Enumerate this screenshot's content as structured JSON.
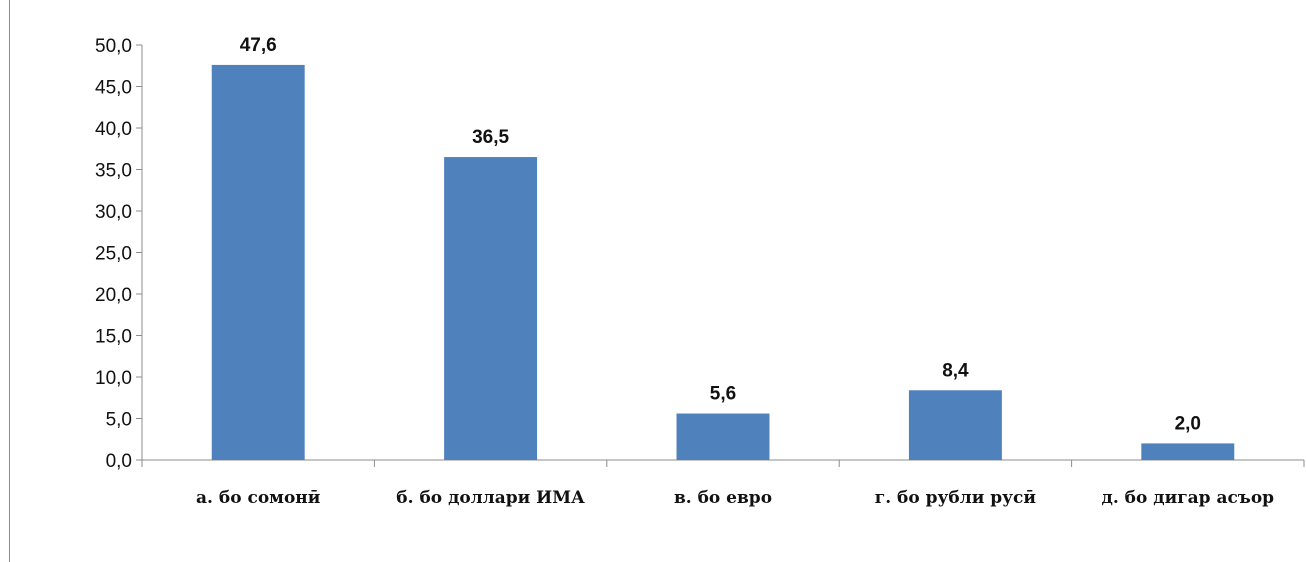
{
  "chart_data": {
    "type": "bar",
    "title": "",
    "xlabel": "",
    "ylabel": "",
    "categories": [
      "а. бо сомонӣ",
      "б. бо доллари ИМА",
      "в. бо евро",
      "г. бо рубли русӣ",
      "д. бо дигар асъор"
    ],
    "values": [
      47.6,
      36.5,
      5.6,
      8.4,
      2.0
    ],
    "value_labels": [
      "47,6",
      "36,5",
      "5,6",
      "8,4",
      "2,0"
    ],
    "ylim": [
      0,
      50
    ],
    "yticks": [
      "0,0",
      "5,0",
      "10,0",
      "15,0",
      "20,0",
      "25,0",
      "30,0",
      "35,0",
      "40,0",
      "45,0",
      "50,0"
    ],
    "grid": false,
    "legend": "none",
    "bar_color": "#4f81bd"
  }
}
